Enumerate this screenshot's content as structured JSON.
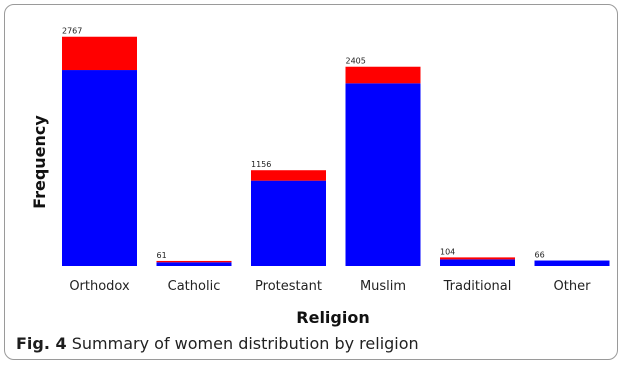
{
  "chart_data": {
    "type": "bar",
    "stacked": true,
    "categories": [
      "Orthodox",
      "Catholic",
      "Protestant",
      "Muslim",
      "Traditional",
      "Other"
    ],
    "totals": [
      2767,
      61,
      1156,
      2405,
      104,
      66
    ],
    "total_labels": [
      "2767",
      "61",
      "1156",
      "2405",
      "104",
      "66"
    ],
    "series": [
      {
        "color": "#0000ff",
        "values": [
          2365,
          45,
          1030,
          2205,
          80,
          66
        ]
      },
      {
        "color": "#ff0000",
        "values": [
          402,
          16,
          126,
          200,
          24,
          0
        ]
      }
    ],
    "xlabel": "Religion",
    "ylabel": "Frequency",
    "ylim": [
      0,
      2800
    ],
    "grid": false,
    "legend": "none"
  },
  "caption": {
    "label": "Fig. 4",
    "text": "Summary of women distribution by religion"
  }
}
